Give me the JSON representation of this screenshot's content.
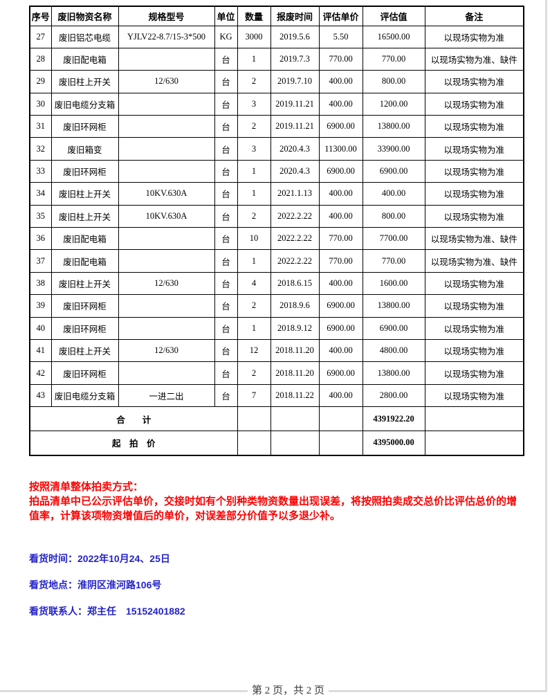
{
  "table": {
    "headers": [
      "序号",
      "废旧物资名称",
      "规格型号",
      "单位",
      "数量",
      "报废时间",
      "评估单价",
      "评估值",
      "备注"
    ],
    "rows": [
      {
        "no": "27",
        "name": "废旧铝芯电缆",
        "red": true,
        "spec": "YJLV22-8.7/15-3*500",
        "unit": "KG",
        "qty": "3000",
        "date": "2019.5.6",
        "price": "5.50",
        "value": "16500.00",
        "remark": "以现场实物为准"
      },
      {
        "no": "28",
        "name": "废旧配电箱",
        "spec": "",
        "unit": "台",
        "qty": "1",
        "date": "2019.7.3",
        "price": "770.00",
        "value": "770.00",
        "remark": "以现场实物为准、缺件"
      },
      {
        "no": "29",
        "name": "废旧柱上开关",
        "spec": "12/630",
        "unit": "台",
        "qty": "2",
        "date": "2019.7.10",
        "price": "400.00",
        "value": "800.00",
        "remark": "以现场实物为准"
      },
      {
        "no": "30",
        "name": "废旧电缆分支箱",
        "spec": "",
        "unit": "台",
        "qty": "3",
        "date": "2019.11.21",
        "price": "400.00",
        "value": "1200.00",
        "remark": "以现场实物为准"
      },
      {
        "no": "31",
        "name": "废旧环网柜",
        "spec": "",
        "unit": "台",
        "qty": "2",
        "date": "2019.11.21",
        "price": "6900.00",
        "value": "13800.00",
        "remark": "以现场实物为准"
      },
      {
        "no": "32",
        "name": "废旧箱变",
        "red": true,
        "spec": "",
        "unit": "台",
        "qty": "3",
        "date": "2020.4.3",
        "price": "11300.00",
        "value": "33900.00",
        "remark": "以现场实物为准"
      },
      {
        "no": "33",
        "name": "废旧环网柜",
        "spec": "",
        "unit": "台",
        "qty": "1",
        "date": "2020.4.3",
        "price": "6900.00",
        "value": "6900.00",
        "remark": "以现场实物为准"
      },
      {
        "no": "34",
        "name": "废旧柱上开关",
        "spec": "10KV.630A",
        "unit": "台",
        "qty": "1",
        "date": "2021.1.13",
        "price": "400.00",
        "value": "400.00",
        "remark": "以现场实物为准"
      },
      {
        "no": "35",
        "name": "废旧柱上开关",
        "spec": "10KV.630A",
        "unit": "台",
        "qty": "2",
        "date": "2022.2.22",
        "price": "400.00",
        "value": "800.00",
        "remark": "以现场实物为准"
      },
      {
        "no": "36",
        "name": "废旧配电箱",
        "spec": "",
        "unit": "台",
        "qty": "10",
        "date": "2022.2.22",
        "price": "770.00",
        "value": "7700.00",
        "remark": "以现场实物为准、缺件"
      },
      {
        "no": "37",
        "name": "废旧配电箱",
        "spec": "",
        "unit": "台",
        "qty": "1",
        "date": "2022.2.22",
        "price": "770.00",
        "value": "770.00",
        "remark": "以现场实物为准、缺件"
      },
      {
        "no": "38",
        "name": "废旧柱上开关",
        "spec": "12/630",
        "unit": "台",
        "qty": "4",
        "date": "2018.6.15",
        "price": "400.00",
        "value": "1600.00",
        "remark": "以现场实物为准"
      },
      {
        "no": "39",
        "name": "废旧环网柜",
        "spec": "",
        "unit": "台",
        "qty": "2",
        "date": "2018.9.6",
        "price": "6900.00",
        "value": "13800.00",
        "remark": "以现场实物为准"
      },
      {
        "no": "40",
        "name": "废旧环网柜",
        "spec": "",
        "unit": "台",
        "qty": "1",
        "date": "2018.9.12",
        "price": "6900.00",
        "value": "6900.00",
        "remark": "以现场实物为准"
      },
      {
        "no": "41",
        "name": "废旧柱上开关",
        "spec": "12/630",
        "unit": "台",
        "qty": "12",
        "date": "2018.11.20",
        "price": "400.00",
        "value": "4800.00",
        "remark": "以现场实物为准"
      },
      {
        "no": "42",
        "name": "废旧环网柜",
        "spec": "",
        "unit": "台",
        "qty": "2",
        "date": "2018.11.20",
        "price": "6900.00",
        "value": "13800.00",
        "remark": "以现场实物为准"
      },
      {
        "no": "43",
        "name": "废旧电缆分支箱",
        "spec": "一进二出",
        "unit": "台",
        "qty": "7",
        "date": "2018.11.22",
        "price": "400.00",
        "value": "2800.00",
        "remark": "以现场实物为准"
      }
    ],
    "total_label": "合　　计",
    "total_value": "4391922.20",
    "reserve_label": "起　拍　价",
    "reserve_value": "4395000.00"
  },
  "notes": {
    "auction_heading": "按照清单整体拍卖方式：",
    "auction_body": "拍品清单中已公示评估单价，交接时如有个别种类物资数量出现误差，将按照拍卖成交总价比评估总价的增值率，计算该项物资增值后的单价，对误差部分价值予以多退少补。",
    "viewing_time": "看货时间：2022年10月24、25日",
    "viewing_place": "看货地点：淮阴区淮河路106号",
    "viewing_contact": "看货联系人：郑主任　15152401882"
  },
  "footer": {
    "page_indicator": "第 2 页，共 2 页"
  },
  "colors": {
    "accent_red": "#fe0000",
    "accent_blue": "#2323cb",
    "page_edge": "#dcdcdc"
  }
}
